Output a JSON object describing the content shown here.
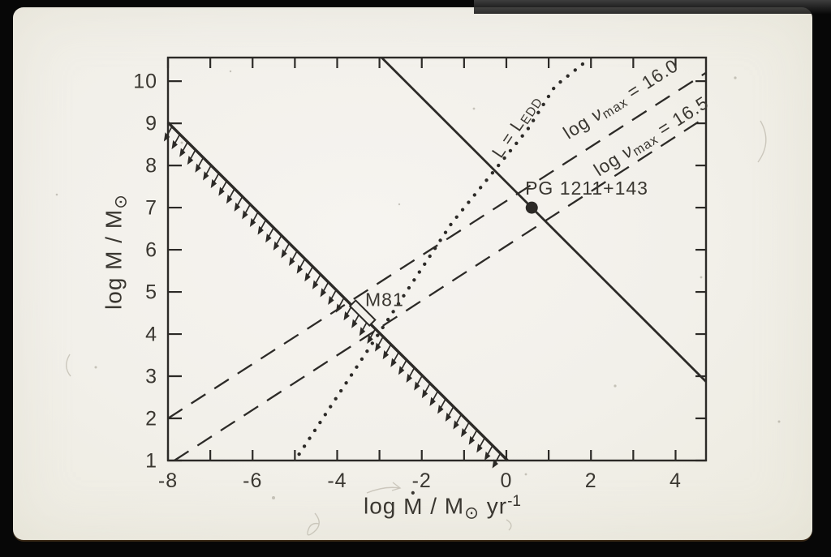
{
  "scene": {
    "page_color": "#f2f0ea",
    "ink_color": "#2c2a27",
    "background_color": "#070707"
  },
  "chart_data": {
    "type": "line",
    "title": "",
    "xlim": [
      -8,
      4.72
    ],
    "ylim": [
      1,
      10.56
    ],
    "grid": false,
    "x_axis_title_parts": {
      "p1": "log ",
      "m": "M",
      "dot": "•",
      "p2": " / M",
      "sun": "⊙",
      "p3": " yr",
      "sup": "-1"
    },
    "y_axis_title_parts": {
      "p1": "log M / M",
      "sun": "⊙"
    },
    "x_ticks": [
      {
        "v": -8,
        "label": "-8"
      },
      {
        "v": -7,
        "label": ""
      },
      {
        "v": -6,
        "label": "-6"
      },
      {
        "v": -5,
        "label": ""
      },
      {
        "v": -4,
        "label": "-4"
      },
      {
        "v": -3,
        "label": ""
      },
      {
        "v": -2,
        "label": "-2"
      },
      {
        "v": -1,
        "label": ""
      },
      {
        "v": 0,
        "label": "0"
      },
      {
        "v": 1,
        "label": ""
      },
      {
        "v": 2,
        "label": "2"
      },
      {
        "v": 3,
        "label": ""
      },
      {
        "v": 4,
        "label": "4"
      }
    ],
    "y_ticks": [
      {
        "v": 1,
        "label": "1"
      },
      {
        "v": 2,
        "label": "2"
      },
      {
        "v": 3,
        "label": "3"
      },
      {
        "v": 4,
        "label": "4"
      },
      {
        "v": 5,
        "label": "5"
      },
      {
        "v": 6,
        "label": "6"
      },
      {
        "v": 7,
        "label": "7"
      },
      {
        "v": 8,
        "label": "8"
      },
      {
        "v": 9,
        "label": "9"
      },
      {
        "v": 10,
        "label": "10"
      }
    ],
    "lines": [
      {
        "name": "numax-16-0-line",
        "series": "log numax = 16.0",
        "style": "dashed",
        "points": [
          [
            -8,
            2.0
          ],
          [
            4.72,
            10.2
          ]
        ]
      },
      {
        "name": "numax-16-5-line",
        "series": "log numax = 16.5",
        "style": "dashed",
        "points": [
          [
            -7.85,
            1.0
          ],
          [
            4.72,
            9.15
          ]
        ]
      },
      {
        "name": "eddington-limit-line",
        "series": "L = L_EDD",
        "style": "dotted",
        "points": [
          [
            -4.9,
            1.15
          ],
          [
            -3.55,
            3.2
          ],
          [
            -1.3,
            6.62
          ],
          [
            0.5,
            8.85
          ],
          [
            1.15,
            9.88
          ],
          [
            1.92,
            10.5
          ]
        ]
      },
      {
        "name": "wind-boundary-line",
        "series": "forbidden-region boundary",
        "style": "solid",
        "width": 3.4,
        "hatch_arrows": true,
        "points": [
          [
            -8,
            9.02
          ],
          [
            0.03,
            1.0
          ]
        ]
      },
      {
        "name": "pg1211-line",
        "series": "line through PG 1211+143",
        "style": "solid",
        "width": 2.8,
        "points": [
          [
            -2.95,
            10.56
          ],
          [
            4.72,
            2.87
          ]
        ]
      }
    ],
    "points": [
      {
        "name": "pg1211-point",
        "label": "PG 1211+143",
        "x": 0.6,
        "y": 7.0,
        "marker": "dot",
        "r": 7.5
      },
      {
        "name": "m81-marker",
        "label": "M81",
        "x": -3.4,
        "y": 4.5,
        "marker": "open-rect",
        "w": 34,
        "h": 10,
        "angle": 45
      }
    ],
    "annotations": [
      {
        "name": "eddington-label",
        "x": 0.25,
        "y": 8.92,
        "rotate": -56,
        "size": 21.5,
        "parts": [
          {
            "t": "L = L"
          },
          {
            "t": "EDD",
            "sub": true
          }
        ]
      },
      {
        "name": "numax-16-0-label",
        "x": 2.72,
        "y": 9.55,
        "rotate": -32.5,
        "size": 22.5,
        "parts": [
          {
            "t": "log "
          },
          {
            "t": "ν",
            "italic": true
          },
          {
            "t": "max",
            "sub": true
          },
          {
            "t": " = 16.0"
          }
        ]
      },
      {
        "name": "numax-16-5-label",
        "x": 3.44,
        "y": 8.67,
        "rotate": -32.5,
        "size": 22.5,
        "parts": [
          {
            "t": "log "
          },
          {
            "t": "ν",
            "italic": true
          },
          {
            "t": "max",
            "sub": true
          },
          {
            "t": " = 16.5"
          }
        ]
      },
      {
        "name": "pg1211-label",
        "x": 1.9,
        "y": 7.42,
        "rotate": 0,
        "size": 23,
        "parts": [
          {
            "t": "PG 1211+143"
          }
        ]
      },
      {
        "name": "m81-label",
        "x": -2.88,
        "y": 4.78,
        "rotate": 0,
        "size": 23,
        "parts": [
          {
            "t": "M81"
          }
        ]
      }
    ]
  }
}
